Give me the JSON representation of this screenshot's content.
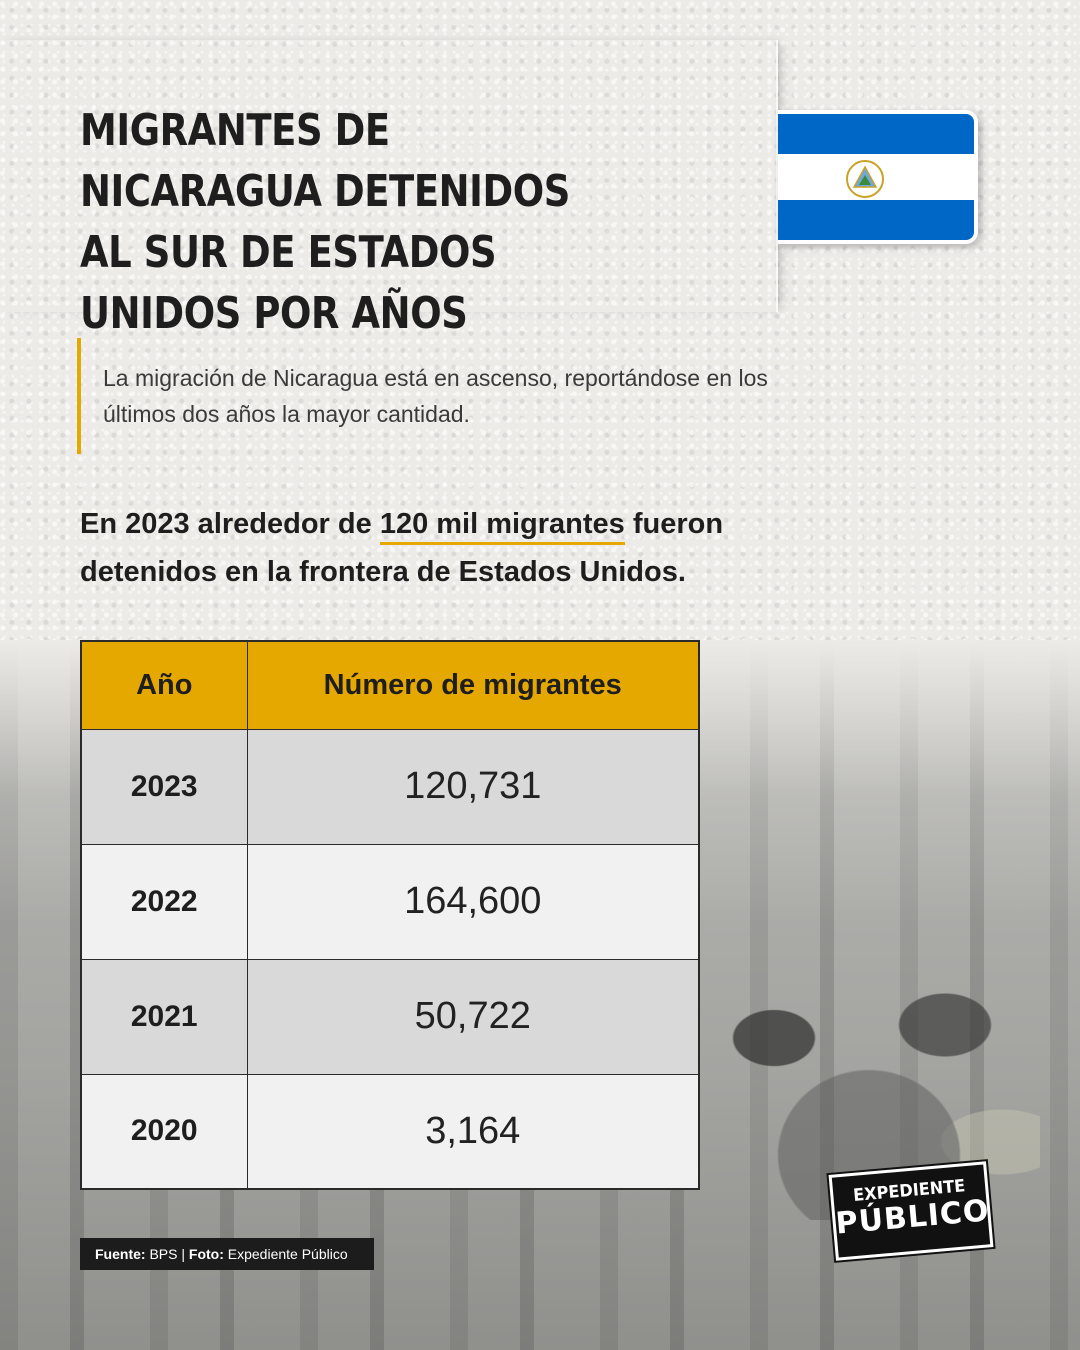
{
  "title": "MIGRANTES DE NICARAGUA DETENIDOS AL SUR DE ESTADOS UNIDOS POR AÑOS",
  "intro": "La migración de Nicaragua está en ascenso, reportándose en los últimos dos años la mayor cantidad.",
  "highlight": {
    "before": "En 2023 alrededor de ",
    "emphasis": "120 mil migrantes",
    "after": " fueron detenidos en la frontera de Estados Unidos."
  },
  "table": {
    "headers": [
      "Año",
      "Número de migrantes"
    ],
    "rows": [
      {
        "year": "2023",
        "value": "120,731"
      },
      {
        "year": "2022",
        "value": "164,600"
      },
      {
        "year": "2021",
        "value": "50,722"
      },
      {
        "year": "2020",
        "value": "3,164"
      }
    ]
  },
  "source": {
    "label_fuente": "Fuente:",
    "fuente": "BPS",
    "separator": "|",
    "label_foto": "Foto:",
    "foto": "Expediente Público"
  },
  "logo": {
    "line1": "EXPEDIENTE",
    "line2": "PÚBLICO"
  },
  "colors": {
    "accent": "#e5a800",
    "flag_blue": "#0067c6",
    "text_dark": "#1e1e1e"
  },
  "icons": [
    "nicaragua-flag-icon",
    "nicaragua-coat-of-arms-icon"
  ]
}
